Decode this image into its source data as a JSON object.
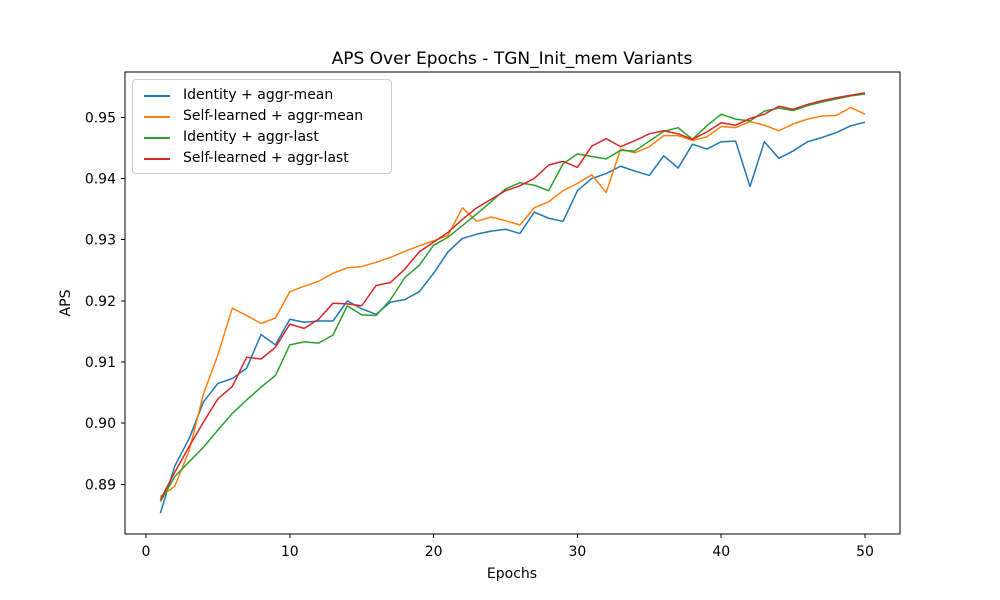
{
  "chart_data": {
    "type": "line",
    "title": "APS Over Epochs - TGN_Init_mem Variants",
    "xlabel": "Epochs",
    "ylabel": "APS",
    "legend_position": "upper-left",
    "grid": false,
    "xticks": [
      0,
      10,
      20,
      30,
      40,
      50
    ],
    "yticks": [
      0.89,
      0.9,
      0.91,
      0.92,
      0.93,
      0.94,
      0.95
    ],
    "axes": {
      "left": 125,
      "right": 900,
      "top": 72,
      "bottom": 534,
      "xlim": [
        -1.46,
        52.43
      ],
      "ylim": [
        0.8819,
        0.9574
      ]
    },
    "x": [
      1,
      2,
      3,
      4,
      5,
      6,
      7,
      8,
      9,
      10,
      11,
      12,
      13,
      14,
      15,
      16,
      17,
      18,
      19,
      20,
      21,
      22,
      23,
      24,
      25,
      26,
      27,
      28,
      29,
      30,
      31,
      32,
      33,
      34,
      35,
      36,
      37,
      38,
      39,
      40,
      41,
      42,
      43,
      44,
      45,
      46,
      47,
      48,
      49,
      50
    ],
    "series": [
      {
        "name": "Identity + aggr-mean",
        "color": "#1f77b4",
        "values": [
          0.8853,
          0.893,
          0.8975,
          0.9035,
          0.9065,
          0.9073,
          0.909,
          0.9145,
          0.9128,
          0.917,
          0.9165,
          0.9167,
          0.9167,
          0.92,
          0.9187,
          0.9178,
          0.9198,
          0.9202,
          0.9215,
          0.9245,
          0.928,
          0.9302,
          0.9309,
          0.9314,
          0.9317,
          0.931,
          0.9345,
          0.9335,
          0.933,
          0.938,
          0.94,
          0.9408,
          0.942,
          0.9412,
          0.9405,
          0.9437,
          0.9417,
          0.9456,
          0.9448,
          0.946,
          0.9461,
          0.9387,
          0.946,
          0.9433,
          0.9445,
          0.946,
          0.9467,
          0.9475,
          0.9486,
          0.9492
        ]
      },
      {
        "name": "Self-learned + aggr-mean",
        "color": "#ff7f0e",
        "values": [
          0.888,
          0.8897,
          0.8955,
          0.9048,
          0.9112,
          0.9188,
          0.9176,
          0.9163,
          0.9172,
          0.9215,
          0.9224,
          0.9232,
          0.9245,
          0.9254,
          0.9256,
          0.9263,
          0.9271,
          0.9281,
          0.929,
          0.9298,
          0.9307,
          0.9352,
          0.933,
          0.9337,
          0.9331,
          0.9324,
          0.9352,
          0.9362,
          0.938,
          0.9392,
          0.9406,
          0.9377,
          0.9448,
          0.9442,
          0.9452,
          0.947,
          0.947,
          0.9462,
          0.9468,
          0.9485,
          0.9483,
          0.9493,
          0.9487,
          0.9478,
          0.9489,
          0.9497,
          0.9502,
          0.9503,
          0.9516,
          0.9505
        ]
      },
      {
        "name": "Identity + aggr-last",
        "color": "#2ca02c",
        "values": [
          0.8872,
          0.8913,
          0.8937,
          0.8961,
          0.8989,
          0.9016,
          0.9038,
          0.9059,
          0.9078,
          0.9128,
          0.9133,
          0.9131,
          0.9144,
          0.9192,
          0.9177,
          0.9176,
          0.9202,
          0.9238,
          0.9258,
          0.9291,
          0.9304,
          0.9323,
          0.9342,
          0.9362,
          0.9383,
          0.9393,
          0.9389,
          0.938,
          0.9424,
          0.944,
          0.9436,
          0.9432,
          0.9446,
          0.9445,
          0.9461,
          0.9477,
          0.9483,
          0.9464,
          0.9486,
          0.9505,
          0.9497,
          0.9494,
          0.951,
          0.9515,
          0.9511,
          0.9519,
          0.9525,
          0.953,
          0.9535,
          0.9538
        ]
      },
      {
        "name": "Self-learned + aggr-last",
        "color": "#d62728",
        "values": [
          0.8875,
          0.892,
          0.8962,
          0.9002,
          0.904,
          0.906,
          0.9108,
          0.9105,
          0.9124,
          0.9162,
          0.9155,
          0.917,
          0.9196,
          0.9195,
          0.9192,
          0.9225,
          0.923,
          0.9252,
          0.928,
          0.9296,
          0.9312,
          0.9333,
          0.9352,
          0.9366,
          0.938,
          0.9388,
          0.94,
          0.9422,
          0.9428,
          0.9418,
          0.9453,
          0.9465,
          0.9452,
          0.9462,
          0.9473,
          0.9478,
          0.9473,
          0.9464,
          0.9476,
          0.9491,
          0.9487,
          0.9498,
          0.9505,
          0.9518,
          0.9513,
          0.9521,
          0.9527,
          0.9532,
          0.9536,
          0.954
        ]
      }
    ],
    "style": {
      "line_width": 1.5,
      "spine_color": "#000000",
      "tick_color": "#000000",
      "background": "#ffffff",
      "legend_border": "#cccccc",
      "title_font_px": 17,
      "label_font_px": 14
    }
  }
}
